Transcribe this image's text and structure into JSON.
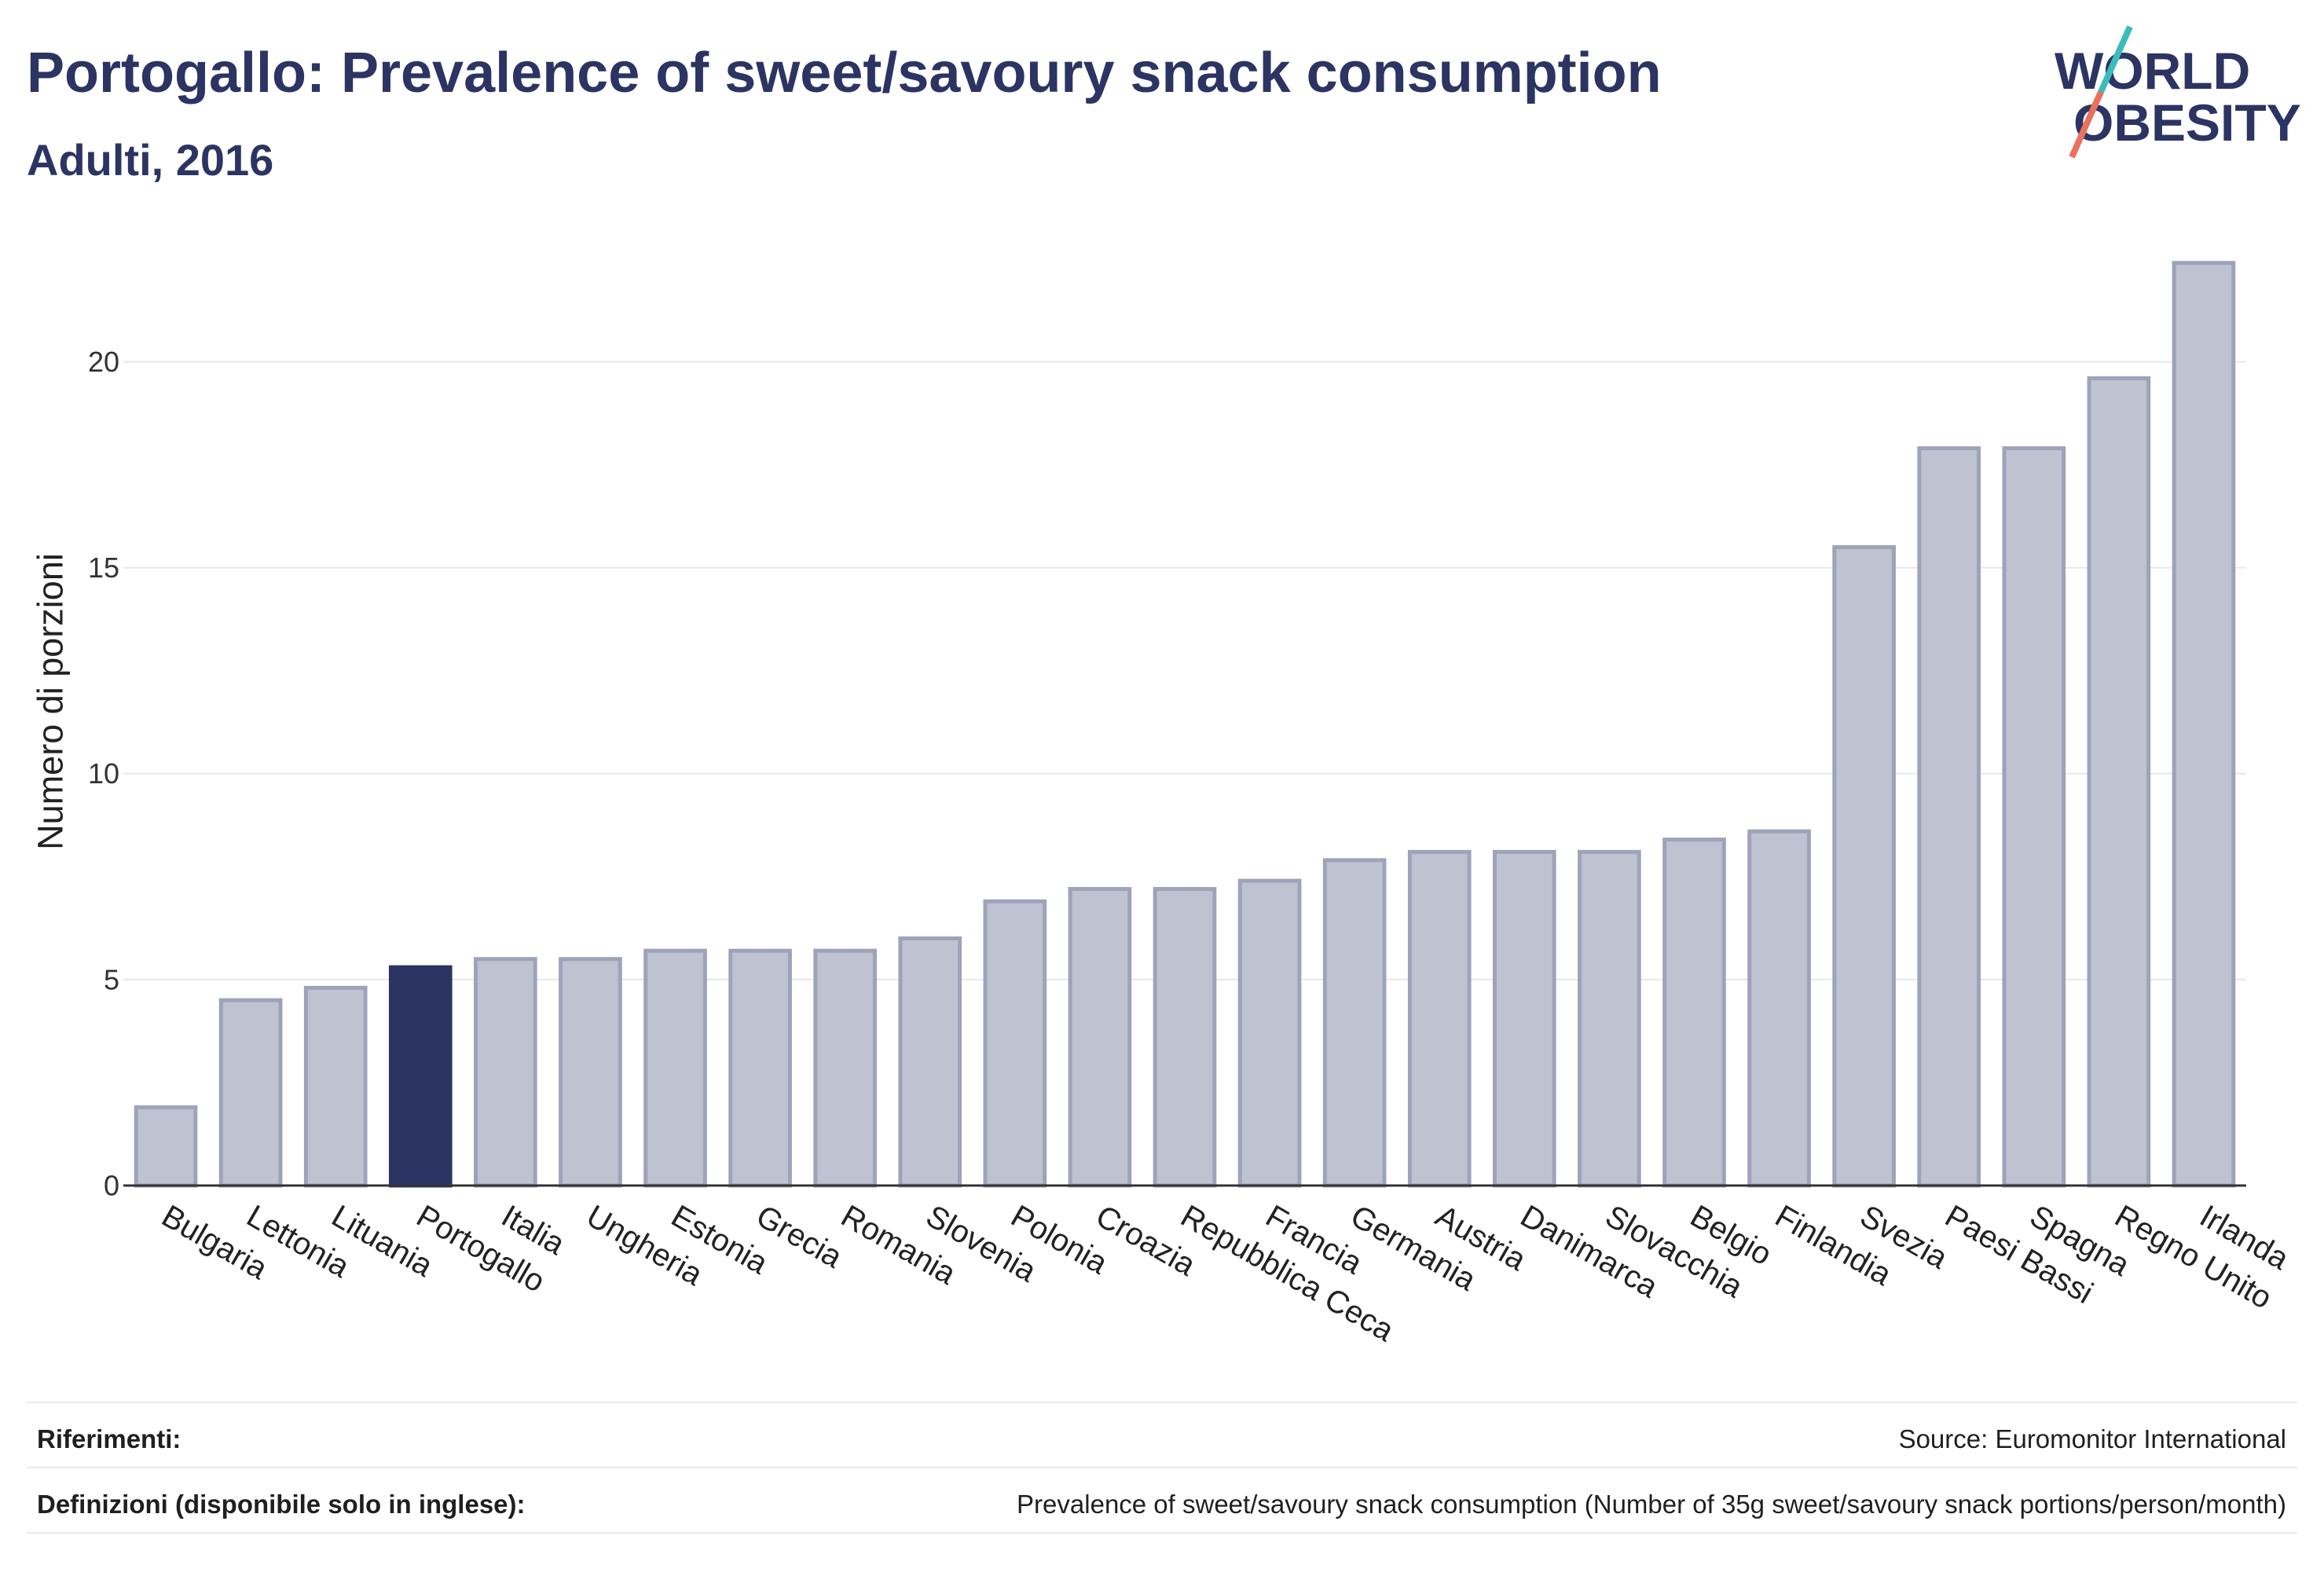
{
  "colors": {
    "navy": "#2b3462",
    "bar_fill": "#bfc2d0",
    "bar_border": "#9ea3ba",
    "axis_line": "#333333",
    "gridline": "#e8e8e8",
    "logo_teal": "#3bbcbb",
    "logo_coral": "#e9715f"
  },
  "logo": {
    "line1": "WORLD",
    "line2": "OBESITY"
  },
  "chart_data": {
    "type": "bar",
    "title": "Portogallo: Prevalence of sweet/savoury snack consumption",
    "subtitle": "Adulti, 2016",
    "ylabel": "Numero di porzioni",
    "ylim": [
      0,
      23.5
    ],
    "yticks": [
      0,
      5,
      10,
      15,
      20
    ],
    "grid": true,
    "categories": [
      "Bulgaria",
      "Lettonia",
      "Lituania",
      "Portogallo",
      "Italia",
      "Ungheria",
      "Estonia",
      "Grecia",
      "Romania",
      "Slovenia",
      "Polonia",
      "Croazia",
      "Repubblica Ceca",
      "Francia",
      "Germania",
      "Austria",
      "Danimarca",
      "Slovacchia",
      "Belgio",
      "Finlandia",
      "Svezia",
      "Paesi Bassi",
      "Spagna",
      "Regno Unito",
      "Irlanda"
    ],
    "values": [
      1.9,
      4.5,
      4.8,
      5.3,
      5.5,
      5.5,
      5.7,
      5.7,
      5.7,
      6.0,
      6.9,
      7.2,
      7.2,
      7.4,
      7.9,
      8.1,
      8.1,
      8.1,
      8.4,
      8.6,
      15.5,
      17.9,
      17.9,
      19.6,
      22.4
    ],
    "highlighted": [
      false,
      false,
      false,
      true,
      false,
      false,
      false,
      false,
      false,
      false,
      false,
      false,
      false,
      false,
      false,
      false,
      false,
      false,
      false,
      false,
      false,
      false,
      false,
      false,
      false
    ]
  },
  "footer": {
    "references_label": "Riferimenti:",
    "references_value": "Source: Euromonitor International",
    "definitions_label": "Definizioni (disponibile solo in inglese):",
    "definitions_value": "Prevalence of sweet/savoury snack consumption (Number of 35g sweet/savoury snack portions/person/month)"
  }
}
